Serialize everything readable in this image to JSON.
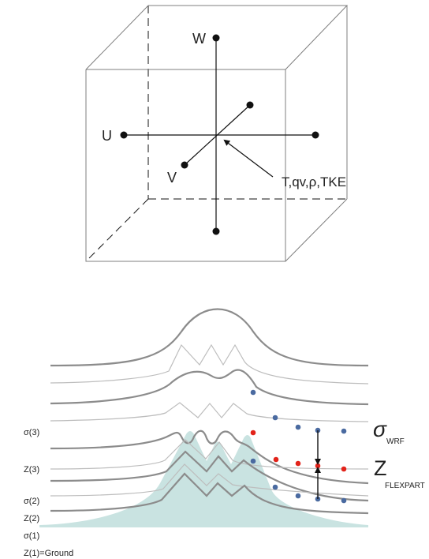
{
  "grid_cell": {
    "axis_labels": {
      "w": "W",
      "u": "U",
      "v": "V"
    },
    "center_label": "T,qv,ρ,TKE"
  },
  "vertical_coordinates": {
    "levels": [
      "σ(3)",
      "Z(3)",
      "σ(2)",
      "Z(2)",
      "σ(1)",
      "Z(1)=Ground"
    ],
    "wrf_label": {
      "symbol": "σ",
      "subscript": "WRF"
    },
    "flexpart_label": {
      "symbol": "Z",
      "subscript": "FLEXPART"
    },
    "colors": {
      "terrain": "#c9e3e1",
      "sigma_points": "#4a6aa0",
      "z_points": "#e2231a",
      "sigma_levels": "#8c8c8c",
      "z_levels": "#bdbdbd"
    }
  }
}
